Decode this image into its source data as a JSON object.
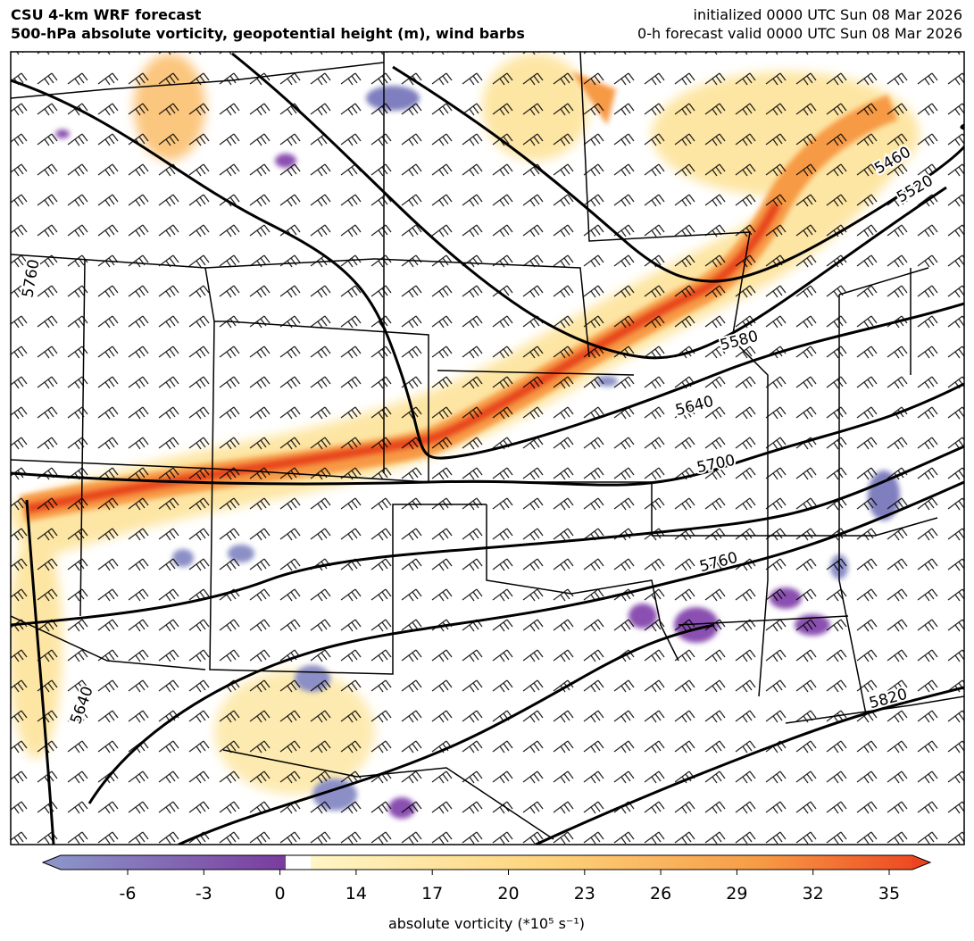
{
  "header": {
    "title": "CSU 4-km WRF forecast",
    "subtitle": "500-hPa absolute vorticity, geopotential height (m), wind barbs",
    "initialized": "initialized 0000 UTC Sun 08 Mar 2026",
    "valid": "0-h forecast valid 0000 UTC Sun 08 Mar 2026"
  },
  "map": {
    "contour_labels": [
      "5460",
      "5520",
      "5580",
      "5640",
      "5700",
      "5760",
      "5820",
      "5760",
      "5640"
    ]
  },
  "colorbar": {
    "ticks": [
      -6,
      -3,
      0,
      14,
      17,
      20,
      23,
      26,
      29,
      32,
      35
    ],
    "label": "absolute vorticity (*10⁵ s⁻¹)"
  }
}
